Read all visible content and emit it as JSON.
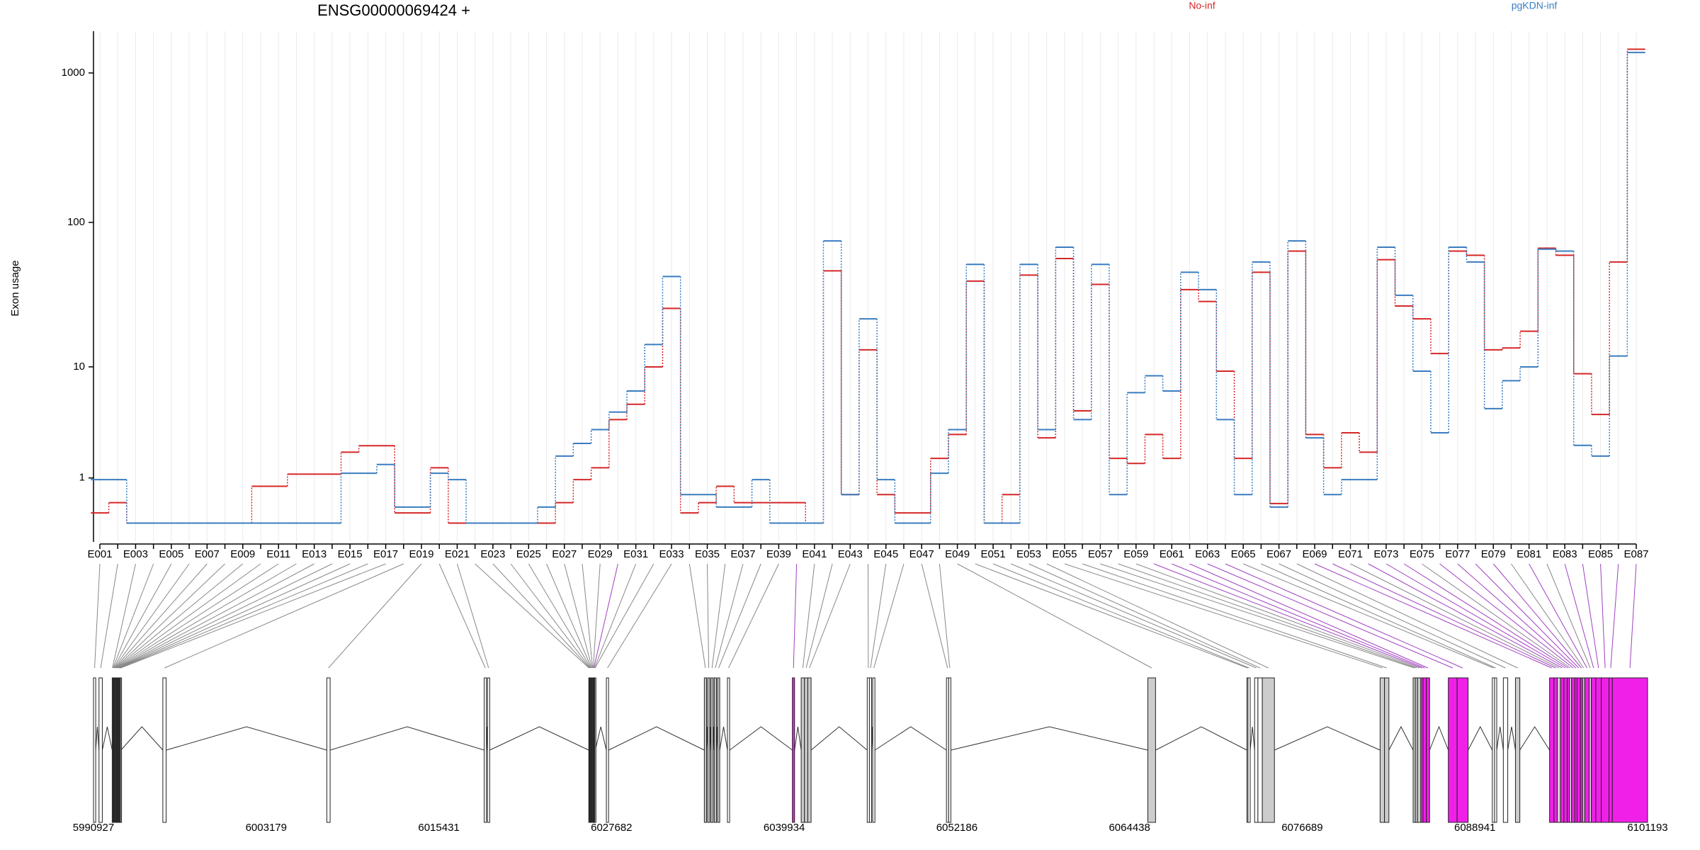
{
  "chart_data": {
    "type": "line",
    "title": "ENSG00000069424 +",
    "y_label": "Exon usage",
    "yscale": "log1p",
    "ylim": [
      -0.25,
      1900
    ],
    "yticks": [
      1,
      10,
      100,
      1000
    ],
    "grid": true,
    "categories": [
      "E001",
      null,
      "E003",
      null,
      "E005",
      null,
      "E007",
      null,
      "E009",
      null,
      "E011",
      null,
      "E013",
      null,
      "E015",
      null,
      "E017",
      null,
      "E019",
      null,
      "E021",
      null,
      "E023",
      null,
      "E025",
      null,
      "E027",
      null,
      "E029",
      null,
      "E031",
      null,
      "E033",
      null,
      "E035",
      null,
      "E037",
      null,
      "E039",
      null,
      "E041",
      null,
      "E043",
      null,
      "E045",
      null,
      "E047",
      null,
      "E049",
      null,
      "E051",
      null,
      "E053",
      null,
      "E055",
      null,
      "E057",
      null,
      "E059",
      null,
      "E061",
      null,
      "E063",
      null,
      "E065",
      null,
      "E067",
      null,
      "E069",
      null,
      "E071",
      null,
      "E073",
      null,
      "E075",
      null,
      "E077",
      null,
      "E079",
      null,
      "E081",
      null,
      "E083",
      null,
      "E085",
      null,
      "E087"
    ],
    "series": [
      {
        "name": "No-inf",
        "color": "#d62728",
        "values": [
          0.17,
          0.37,
          0,
          0,
          0,
          0,
          0,
          0,
          0,
          0.76,
          0.76,
          1.12,
          1.12,
          1.12,
          1.97,
          2.28,
          2.28,
          0.17,
          0.17,
          1.34,
          0,
          0,
          0,
          0,
          0,
          0,
          0.37,
          0.95,
          1.34,
          3.9,
          5.2,
          10,
          26,
          0.17,
          0.37,
          0.76,
          0.37,
          0.37,
          0.37,
          0.37,
          0,
          47,
          0.55,
          13.3,
          0.55,
          0.17,
          0.17,
          1.7,
          2.9,
          40,
          0,
          0.55,
          44,
          2.7,
          57,
          4.6,
          38,
          1.7,
          1.5,
          2.9,
          1.7,
          35,
          29,
          9.3,
          1.7,
          46,
          0.35,
          64,
          2.9,
          1.34,
          3.0,
          1.97,
          56,
          27,
          22,
          12.5,
          64,
          60,
          13.3,
          13.7,
          18,
          67,
          60,
          8.9,
          4.3,
          54,
          1440
        ]
      },
      {
        "name": "pgKDN-inf",
        "color": "#3a7dc0",
        "values": [
          0.95,
          0.95,
          0,
          0,
          0,
          0,
          0,
          0,
          0,
          0,
          0,
          0,
          0,
          0,
          1.15,
          1.15,
          1.46,
          0.28,
          0.28,
          1.15,
          0.95,
          0,
          0,
          0,
          0,
          0.28,
          1.8,
          2.4,
          3.2,
          4.5,
          6.6,
          14.5,
          43,
          0.55,
          0.55,
          0.28,
          0.28,
          0.95,
          0,
          0,
          0,
          75,
          0.55,
          22,
          0.95,
          0,
          0,
          1.15,
          3.2,
          52,
          0,
          0,
          52,
          3.2,
          68,
          3.9,
          52,
          0.55,
          6.4,
          8.6,
          6.6,
          46,
          35,
          3.9,
          0.55,
          54,
          0.28,
          75,
          2.7,
          0.55,
          0.95,
          0.95,
          68,
          32,
          9.3,
          3.0,
          68,
          54,
          4.8,
          7.9,
          10,
          66,
          64,
          2.3,
          1.8,
          12,
          1370
        ]
      }
    ]
  },
  "gene_model": {
    "xlim": [
      5990927,
      6101193
    ],
    "xticks": [
      5990927,
      6003179,
      6015431,
      6027682,
      6039934,
      6052186,
      6064438,
      6076689,
      6088941,
      6101193
    ],
    "exon_starts": [
      5990927,
      5991317,
      5992254,
      5992296,
      5992338,
      5992380,
      5992422,
      5992464,
      5992506,
      5992548,
      5992590,
      5992632,
      5992674,
      5992716,
      5992758,
      5992800,
      5992842,
      5995847,
      6007482,
      6018649,
      6018883,
      6026068,
      6026111,
      6026154,
      6026197,
      6026240,
      6026283,
      6026326,
      6026369,
      6026412,
      6026455,
      6026498,
      6027316,
      6034267,
      6034501,
      6034735,
      6034969,
      6035203,
      6035906,
      6040514,
      6041139,
      6041373,
      6041608,
      6045824,
      6045980,
      6046214,
      6051446,
      6051602,
      6065736,
      6072765,
      6072843,
      6073311,
      6073545,
      6073858,
      6082215,
      6082527,
      6084557,
      6084713,
      6084869,
      6085103,
      6085259,
      6085493,
      6087054,
      6087679,
      6090177,
      6090334,
      6090958,
      6091817,
      6094238,
      6094550,
      6094785,
      6095019,
      6095253,
      6095488,
      6095644,
      6095800,
      6096034,
      6096190,
      6096425,
      6096581,
      6096737,
      6097049,
      6097205,
      6097518,
      6097908,
      6098455,
      6098689
    ],
    "exon_ends": [
      5991083,
      5991552,
      5992284,
      5992326,
      5992368,
      5992410,
      5992452,
      5992494,
      5992536,
      5992578,
      5992620,
      5992662,
      5992704,
      5992746,
      5992788,
      5992830,
      5992872,
      5996081,
      6007716,
      6018805,
      6019039,
      6026098,
      6026141,
      6026184,
      6026227,
      6026270,
      6026313,
      6026356,
      6026399,
      6026442,
      6026485,
      6026528,
      6027472,
      6034423,
      6034657,
      6034891,
      6035125,
      6035359,
      6036062,
      6040670,
      6041373,
      6041608,
      6041842,
      6045980,
      6046136,
      6046370,
      6051602,
      6051759,
      6066283,
      6072843,
      6072999,
      6073545,
      6073858,
      6074717,
      6082527,
      6082839,
      6084713,
      6084869,
      6085103,
      6085259,
      6085493,
      6085727,
      6087679,
      6088460,
      6090334,
      6090490,
      6091271,
      6092129,
      6094550,
      6094785,
      6095019,
      6095253,
      6095488,
      6095644,
      6095800,
      6096034,
      6096190,
      6096425,
      6096581,
      6096737,
      6097049,
      6097205,
      6097518,
      6097908,
      6098455,
      6098689,
      6101193
    ],
    "exon_fills": [
      "#ffffff",
      "#ffffff",
      "#ffffff",
      "#ffffff",
      "#ffffff",
      "#ffffff",
      "#ffffff",
      "#ffffff",
      "#ffffff",
      "#ffffff",
      "#ffffff",
      "#ffffff",
      "#ffffff",
      "#ffffff",
      "#ffffff",
      "#ffffff",
      "#ffffff",
      "#ffffff",
      "#ffffff",
      "#ffffff",
      "#ffffff",
      "#ffffff",
      "#ffffff",
      "#ffffff",
      "#ffffff",
      "#ffffff",
      "#ffffff",
      "#ffffff",
      "#ffffff",
      "#f020e8",
      "#ffffff",
      "#ffffff",
      "#ffffff",
      "#cccccc",
      "#cccccc",
      "#cccccc",
      "#cccccc",
      "#cccccc",
      "#ffffff",
      "#f020e8",
      "#cccccc",
      "#cccccc",
      "#cccccc",
      "#ffffff",
      "#ffffff",
      "#ffffff",
      "#ffffff",
      "#ffffff",
      "#cccccc",
      "#ffffff",
      "#ffffff",
      "#ffffff",
      "#ffffff",
      "#cccccc",
      "#cccccc",
      "#cccccc",
      "#cccccc",
      "#cccccc",
      "#cccccc",
      "#f020e8",
      "#f020e8",
      "#f020e8",
      "#f020e8",
      "#f020e8",
      "#ffffff",
      "#ffffff",
      "#ffffff",
      "#cccccc",
      "#f020e8",
      "#f020e8",
      "#cccccc",
      "#f020e8",
      "#f020e8",
      "#f020e8",
      "#cccccc",
      "#f020e8",
      "#f020e8",
      "#f020e8",
      "#f020e8",
      "#cccccc",
      "#f020e8",
      "#cccccc",
      "#f020e8",
      "#f020e8",
      "#f020e8",
      "#f020e8",
      "#f020e8"
    ]
  }
}
